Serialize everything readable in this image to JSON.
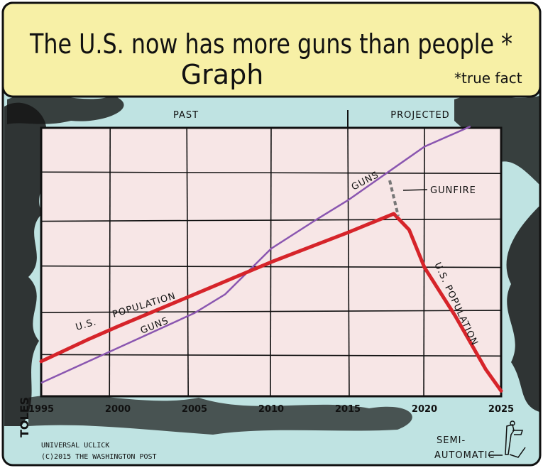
{
  "colors": {
    "banner": "#f7f0a6",
    "sky": "#bfe3e2",
    "plot_bg": "#f7e6e6",
    "population_line": "#d6242a",
    "guns_line": "#8a56b0",
    "ink": "#111111",
    "gunfire": "#777777"
  },
  "header": {
    "title_line1": "The U.S. now has more guns than people *",
    "title_line2": "Graph",
    "footnote": "*true fact"
  },
  "chart_data": {
    "type": "line",
    "title": "The U.S. now has more guns than people * Graph",
    "xlabel": "",
    "ylabel": "",
    "xlim": [
      1995,
      2025
    ],
    "x_ticks": [
      "1995",
      "2000",
      "2005",
      "2010",
      "2015",
      "2020",
      "2025"
    ],
    "grid": true,
    "sections": [
      {
        "label": "PAST"
      },
      {
        "label": "PROJECTED",
        "start_x": 2015
      }
    ],
    "series": [
      {
        "name": "U.S. POPULATION",
        "points": [
          [
            1995,
            0.13
          ],
          [
            1998,
            0.21
          ],
          [
            2000,
            0.26
          ],
          [
            2005,
            0.38
          ],
          [
            2010,
            0.5
          ],
          [
            2015,
            0.61
          ],
          [
            2018,
            0.68
          ],
          [
            2019,
            0.62
          ],
          [
            2020,
            0.48
          ],
          [
            2022,
            0.3
          ],
          [
            2024,
            0.1
          ],
          [
            2025,
            0.02
          ]
        ]
      },
      {
        "name": "GUNS",
        "points": [
          [
            1995,
            0.05
          ],
          [
            2000,
            0.18
          ],
          [
            2005,
            0.31
          ],
          [
            2007,
            0.38
          ],
          [
            2010,
            0.55
          ],
          [
            2013,
            0.66
          ],
          [
            2015,
            0.73
          ],
          [
            2018,
            0.85
          ],
          [
            2020,
            0.93
          ],
          [
            2023,
            1.03
          ]
        ]
      }
    ],
    "labels": {
      "population_start": "U.S.",
      "population_start_2": "POPULATION",
      "guns_low": "GUNS",
      "guns_high": "GUNS",
      "population_projected": "U.S. POPULATION"
    },
    "annotations": [
      "GUNFIRE"
    ]
  },
  "footer": {
    "signature": "TOLES",
    "syndicate": "UNIVERSAL UCLICK",
    "copyright": "(C)2015 THE WASHINGTON POST",
    "semi_1": "SEMI-",
    "semi_2": "AUTOMATIC"
  }
}
